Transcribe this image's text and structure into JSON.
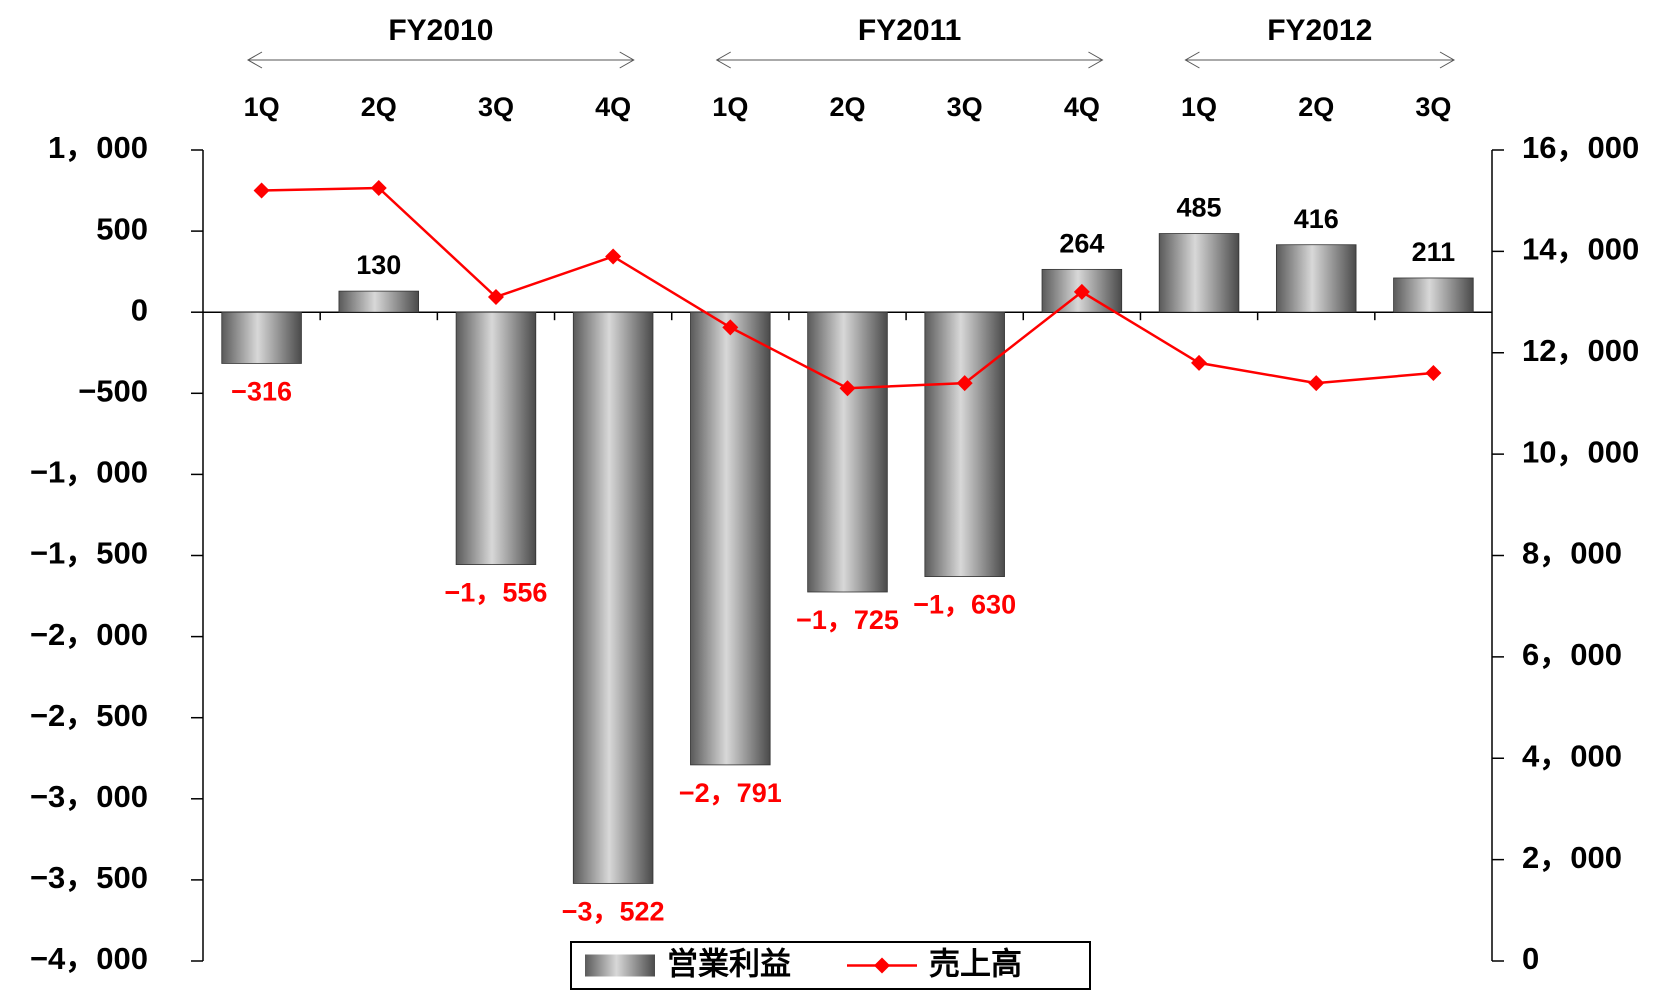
{
  "chart_data": {
    "type": "bar",
    "categories": [
      "1Q",
      "2Q",
      "3Q",
      "4Q",
      "1Q",
      "2Q",
      "3Q",
      "4Q",
      "1Q",
      "2Q",
      "3Q"
    ],
    "category_groups": [
      {
        "name": "FY2010",
        "size": 4
      },
      {
        "name": "FY2011",
        "size": 4
      },
      {
        "name": "FY2012",
        "size": 3
      }
    ],
    "series": [
      {
        "name": "営業利益",
        "type": "bar",
        "color": "#808080",
        "negative_label_color": "#ff0000",
        "values": [
          -316,
          130,
          -1556,
          -3522,
          -2791,
          -1725,
          -1630,
          264,
          485,
          416,
          211
        ],
        "value_labels": [
          "−316",
          "130",
          "−1，556",
          "−3，522",
          "−2，791",
          "−1，725",
          "−1，630",
          "264",
          "485",
          "416",
          "211"
        ]
      },
      {
        "name": "売上高",
        "type": "line",
        "axis": "y2",
        "color": "#ff0000",
        "values": [
          15200,
          15250,
          13100,
          13900,
          12500,
          11300,
          11400,
          13200,
          11800,
          11400,
          11600
        ]
      }
    ],
    "ylim": [
      -4000,
      1000
    ],
    "yticks": [
      {
        "value": -4000,
        "label": "−4，000"
      },
      {
        "value": -3500,
        "label": "−3，500"
      },
      {
        "value": -3000,
        "label": "−3，000"
      },
      {
        "value": -2500,
        "label": "−2，500"
      },
      {
        "value": -2000,
        "label": "−2，000"
      },
      {
        "value": -1500,
        "label": "−1，500"
      },
      {
        "value": -1000,
        "label": "−1，000"
      },
      {
        "value": -500,
        "label": "−500"
      },
      0,
      500,
      {
        "value": 1000,
        "label": "1，000"
      }
    ],
    "y2lim": [
      0,
      16000
    ],
    "y2ticks": [
      0,
      {
        "value": 2000,
        "label": "2，000"
      },
      {
        "value": 4000,
        "label": "4，000"
      },
      {
        "value": 6000,
        "label": "6，000"
      },
      {
        "value": 8000,
        "label": "8，000"
      },
      {
        "value": 10000,
        "label": "10，000"
      },
      {
        "value": 12000,
        "label": "12，000"
      },
      {
        "value": 14000,
        "label": "14，000"
      },
      {
        "value": 16000,
        "label": "16，000"
      }
    ],
    "legend": "bottom"
  }
}
